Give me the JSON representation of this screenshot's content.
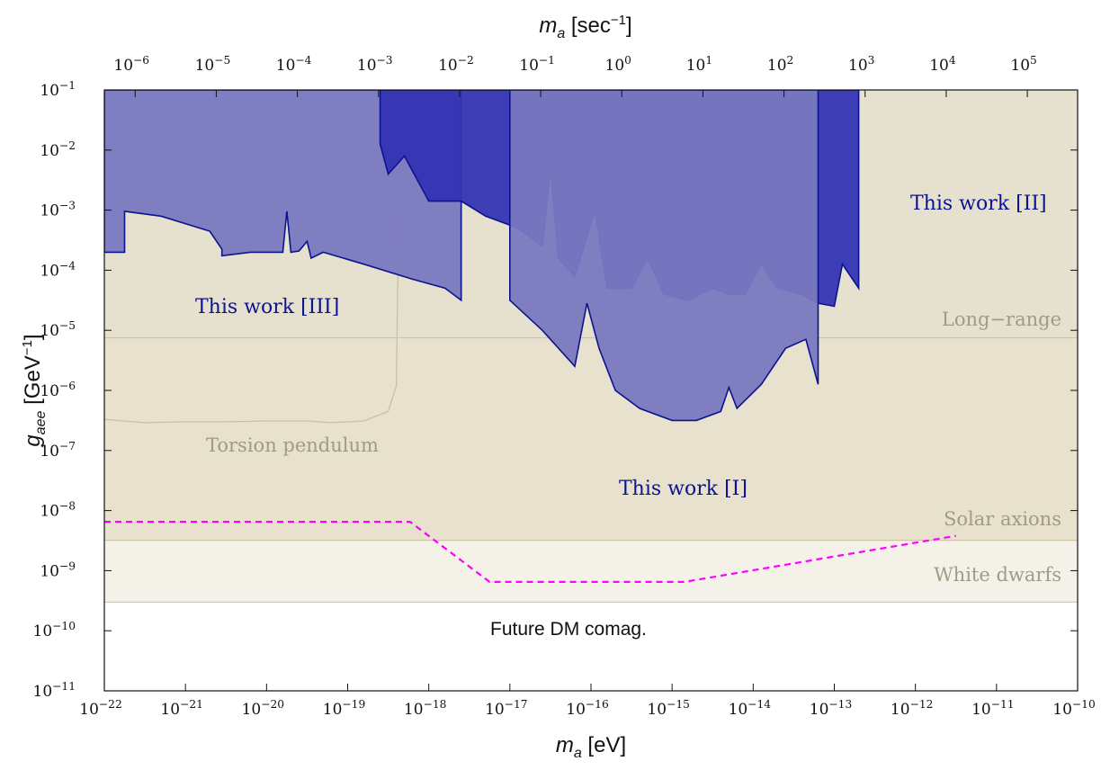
{
  "chart_data": {
    "type": "area",
    "xscale": "log",
    "yscale": "log",
    "xlim": [
      1e-22,
      1e-10
    ],
    "ylim": [
      1e-11,
      0.1
    ],
    "xlabel": {
      "main": "m",
      "sub": "a",
      "unit": " [eV]"
    },
    "ylabel": {
      "main": "g",
      "sub": "aee",
      "unit": " [GeV",
      "unit_sup": "−1",
      "unit_end": "]"
    },
    "top_xlabel": {
      "main": "m",
      "sub": "a",
      "unit": " [sec",
      "unit_sup": "−1",
      "unit_end": "]"
    },
    "x_ticks": [
      {
        "exp": -22,
        "label": "10",
        "sup": "−22"
      },
      {
        "exp": -21,
        "label": "10",
        "sup": "−21"
      },
      {
        "exp": -20,
        "label": "10",
        "sup": "−20"
      },
      {
        "exp": -19,
        "label": "10",
        "sup": "−19"
      },
      {
        "exp": -18,
        "label": "10",
        "sup": "−18"
      },
      {
        "exp": -17,
        "label": "10",
        "sup": "−17"
      },
      {
        "exp": -16,
        "label": "10",
        "sup": "−16"
      },
      {
        "exp": -15,
        "label": "10",
        "sup": "−15"
      },
      {
        "exp": -14,
        "label": "10",
        "sup": "−14"
      },
      {
        "exp": -13,
        "label": "10",
        "sup": "−13"
      },
      {
        "exp": -12,
        "label": "10",
        "sup": "−12"
      },
      {
        "exp": -11,
        "label": "10",
        "sup": "−11"
      },
      {
        "exp": -10,
        "label": "10",
        "sup": "−10"
      }
    ],
    "y_ticks": [
      {
        "exp": -11,
        "label": "10",
        "sup": "−11"
      },
      {
        "exp": -10,
        "label": "10",
        "sup": "−10"
      },
      {
        "exp": -9,
        "label": "10",
        "sup": "−9"
      },
      {
        "exp": -8,
        "label": "10",
        "sup": "−8"
      },
      {
        "exp": -7,
        "label": "10",
        "sup": "−7"
      },
      {
        "exp": -6,
        "label": "10",
        "sup": "−6"
      },
      {
        "exp": -5,
        "label": "10",
        "sup": "−5"
      },
      {
        "exp": -4,
        "label": "10",
        "sup": "−4"
      },
      {
        "exp": -3,
        "label": "10",
        "sup": "−3"
      },
      {
        "exp": -2,
        "label": "10",
        "sup": "−2"
      },
      {
        "exp": -1,
        "label": "10",
        "sup": "−1"
      }
    ],
    "top_ticks": [
      {
        "log_ev": -21.62,
        "label": "10",
        "sup": "−6"
      },
      {
        "log_ev": -20.62,
        "label": "10",
        "sup": "−5"
      },
      {
        "log_ev": -19.62,
        "label": "10",
        "sup": "−4"
      },
      {
        "log_ev": -18.62,
        "label": "10",
        "sup": "−3"
      },
      {
        "log_ev": -17.62,
        "label": "10",
        "sup": "−2"
      },
      {
        "log_ev": -16.62,
        "label": "10",
        "sup": "−1"
      },
      {
        "log_ev": -15.62,
        "label": "10",
        "sup": "0"
      },
      {
        "log_ev": -14.62,
        "label": "10",
        "sup": "1"
      },
      {
        "log_ev": -13.62,
        "label": "10",
        "sup": "2"
      },
      {
        "log_ev": -12.62,
        "label": "10",
        "sup": "3"
      },
      {
        "log_ev": -11.62,
        "label": "10",
        "sup": "4"
      },
      {
        "log_ev": -10.62,
        "label": "10",
        "sup": "5"
      }
    ],
    "bands": [
      {
        "name": "Long−range",
        "ymax": 7.5e-06,
        "color": "#ede8d8"
      },
      {
        "name": "Solar axions",
        "ymax": 3.2e-09,
        "color": "#e7e1cd"
      },
      {
        "name": "White dwarfs",
        "ymax": 3e-10,
        "color": "#f4f1e8"
      }
    ],
    "torsion_pendulum": {
      "name": "Torsion pendulum",
      "color": "#cdbf9f",
      "points": [
        [
          -22,
          3.3e-07
        ],
        [
          -21.5,
          2.9e-07
        ],
        [
          -21,
          3e-07
        ],
        [
          -20.5,
          3e-07
        ],
        [
          -20,
          3.1e-07
        ],
        [
          -19.5,
          3.1e-07
        ],
        [
          -19.2,
          2.9e-07
        ],
        [
          -18.8,
          3.1e-07
        ],
        [
          -18.5,
          4.5e-07
        ],
        [
          -18.4,
          1.2e-06
        ],
        [
          -18.35,
          0.1
        ]
      ]
    },
    "future_projection": {
      "name": "Future DM comag.",
      "color": "#ff00ff",
      "points": [
        [
          -22,
          6.5e-09
        ],
        [
          -18.23,
          6.5e-09
        ],
        [
          -17.25,
          6.5e-10
        ],
        [
          -14.85,
          6.5e-10
        ],
        [
          -11.5,
          3.8e-09
        ]
      ]
    },
    "series": [
      {
        "name": "This work [III]",
        "color": "#7878c0",
        "edge": "#0a1490",
        "x_range": [
          -22,
          -17.6
        ],
        "floor_log_g": [
          [
            -22,
            -3.7
          ],
          [
            -21.75,
            -3.7
          ],
          [
            -21.75,
            -3.02
          ],
          [
            -21.3,
            -3.1
          ],
          [
            -20.7,
            -3.35
          ],
          [
            -20.55,
            -3.65
          ],
          [
            -20.55,
            -3.76
          ],
          [
            -20.2,
            -3.7
          ],
          [
            -19.8,
            -3.7
          ],
          [
            -19.75,
            -3.02
          ],
          [
            -19.7,
            -3.7
          ],
          [
            -19.6,
            -3.68
          ],
          [
            -19.5,
            -3.52
          ],
          [
            -19.45,
            -3.8
          ],
          [
            -19.3,
            -3.7
          ],
          [
            -18.8,
            -3.9
          ],
          [
            -18.2,
            -4.15
          ],
          [
            -17.8,
            -4.3
          ],
          [
            -17.6,
            -4.5
          ]
        ]
      },
      {
        "name": "This work [II]",
        "color": "#3434b4",
        "edge": "#0a1490",
        "x_range": [
          -18.6,
          -12.7
        ],
        "floor_log_g": [
          [
            -18.6,
            -1.9
          ],
          [
            -18.5,
            -2.4
          ],
          [
            -18.3,
            -2.1
          ],
          [
            -18.0,
            -2.85
          ],
          [
            -17.6,
            -2.85
          ],
          [
            -17.3,
            -3.1
          ],
          [
            -16.9,
            -3.3
          ],
          [
            -16.6,
            -3.6
          ],
          [
            -16.5,
            -2.3
          ],
          [
            -16.4,
            -3.8
          ],
          [
            -16.2,
            -4.1
          ],
          [
            -15.95,
            -3.0
          ],
          [
            -15.8,
            -4.3
          ],
          [
            -15.5,
            -4.3
          ],
          [
            -15.3,
            -3.8
          ],
          [
            -15.1,
            -4.4
          ],
          [
            -14.8,
            -4.5
          ],
          [
            -14.5,
            -4.3
          ],
          [
            -14.3,
            -4.4
          ],
          [
            -14.1,
            -4.4
          ],
          [
            -13.9,
            -3.9
          ],
          [
            -13.7,
            -4.3
          ],
          [
            -13.4,
            -4.4
          ],
          [
            -13.2,
            -4.55
          ],
          [
            -13.0,
            -4.6
          ],
          [
            -12.9,
            -3.9
          ],
          [
            -12.7,
            -4.3
          ]
        ]
      },
      {
        "name": "This work [I]",
        "color": "#7878c0",
        "edge": "#0a1490",
        "x_range": [
          -17.0,
          -13.2
        ],
        "floor_log_g": [
          [
            -17.0,
            -4.5
          ],
          [
            -16.6,
            -5.0
          ],
          [
            -16.2,
            -5.6
          ],
          [
            -16.05,
            -4.55
          ],
          [
            -15.9,
            -5.3
          ],
          [
            -15.7,
            -6.0
          ],
          [
            -15.4,
            -6.3
          ],
          [
            -15.0,
            -6.5
          ],
          [
            -14.7,
            -6.5
          ],
          [
            -14.4,
            -6.35
          ],
          [
            -14.3,
            -5.95
          ],
          [
            -14.2,
            -6.3
          ],
          [
            -13.9,
            -5.9
          ],
          [
            -13.6,
            -5.3
          ],
          [
            -13.35,
            -5.15
          ],
          [
            -13.2,
            -5.9
          ]
        ]
      }
    ],
    "annotations": [
      "This work [I]",
      "This work [II]",
      "This work [III]"
    ]
  }
}
